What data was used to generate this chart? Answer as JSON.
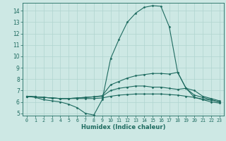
{
  "xlabel": "Humidex (Indice chaleur)",
  "ylabel": "",
  "background_color": "#cde8e4",
  "grid_color": "#b0d4cf",
  "line_color": "#1e6b60",
  "xlim": [
    -0.5,
    23.5
  ],
  "ylim": [
    4.8,
    14.7
  ],
  "xticks": [
    0,
    1,
    2,
    3,
    4,
    5,
    6,
    7,
    8,
    9,
    10,
    11,
    12,
    13,
    14,
    15,
    16,
    17,
    18,
    19,
    20,
    21,
    22,
    23
  ],
  "yticks": [
    5,
    6,
    7,
    8,
    9,
    10,
    11,
    12,
    13,
    14
  ],
  "lines": [
    {
      "x": [
        0,
        1,
        2,
        3,
        4,
        5,
        6,
        7,
        8,
        9,
        10,
        11,
        12,
        13,
        14,
        15,
        16,
        17,
        18,
        19,
        20,
        21,
        22,
        23
      ],
      "y": [
        6.5,
        6.4,
        6.2,
        6.1,
        6.0,
        5.8,
        5.5,
        5.0,
        4.85,
        6.2,
        9.8,
        11.5,
        13.0,
        13.8,
        14.3,
        14.45,
        14.4,
        12.6,
        8.6,
        7.2,
        6.4,
        6.2,
        6.0,
        5.9
      ]
    },
    {
      "x": [
        0,
        1,
        2,
        3,
        4,
        5,
        6,
        7,
        8,
        9,
        10,
        11,
        12,
        13,
        14,
        15,
        16,
        17,
        18,
        19,
        20,
        21,
        22,
        23
      ],
      "y": [
        6.5,
        6.45,
        6.4,
        6.35,
        6.3,
        6.3,
        6.35,
        6.4,
        6.45,
        6.55,
        7.5,
        7.8,
        8.1,
        8.3,
        8.4,
        8.5,
        8.5,
        8.45,
        8.6,
        7.2,
        6.6,
        6.4,
        6.2,
        6.0
      ]
    },
    {
      "x": [
        0,
        1,
        2,
        3,
        4,
        5,
        6,
        7,
        8,
        9,
        10,
        11,
        12,
        13,
        14,
        15,
        16,
        17,
        18,
        19,
        20,
        21,
        22,
        23
      ],
      "y": [
        6.5,
        6.45,
        6.4,
        6.35,
        6.3,
        6.3,
        6.35,
        6.4,
        6.45,
        6.5,
        7.0,
        7.2,
        7.3,
        7.4,
        7.4,
        7.3,
        7.3,
        7.2,
        7.1,
        7.2,
        7.0,
        6.5,
        6.3,
        6.1
      ]
    },
    {
      "x": [
        0,
        1,
        2,
        3,
        4,
        5,
        6,
        7,
        8,
        9,
        10,
        11,
        12,
        13,
        14,
        15,
        16,
        17,
        18,
        19,
        20,
        21,
        22,
        23
      ],
      "y": [
        6.5,
        6.45,
        6.4,
        6.35,
        6.3,
        6.3,
        6.3,
        6.3,
        6.3,
        6.35,
        6.5,
        6.6,
        6.65,
        6.7,
        6.7,
        6.7,
        6.7,
        6.65,
        6.6,
        6.5,
        6.4,
        6.25,
        6.15,
        6.0
      ]
    }
  ]
}
